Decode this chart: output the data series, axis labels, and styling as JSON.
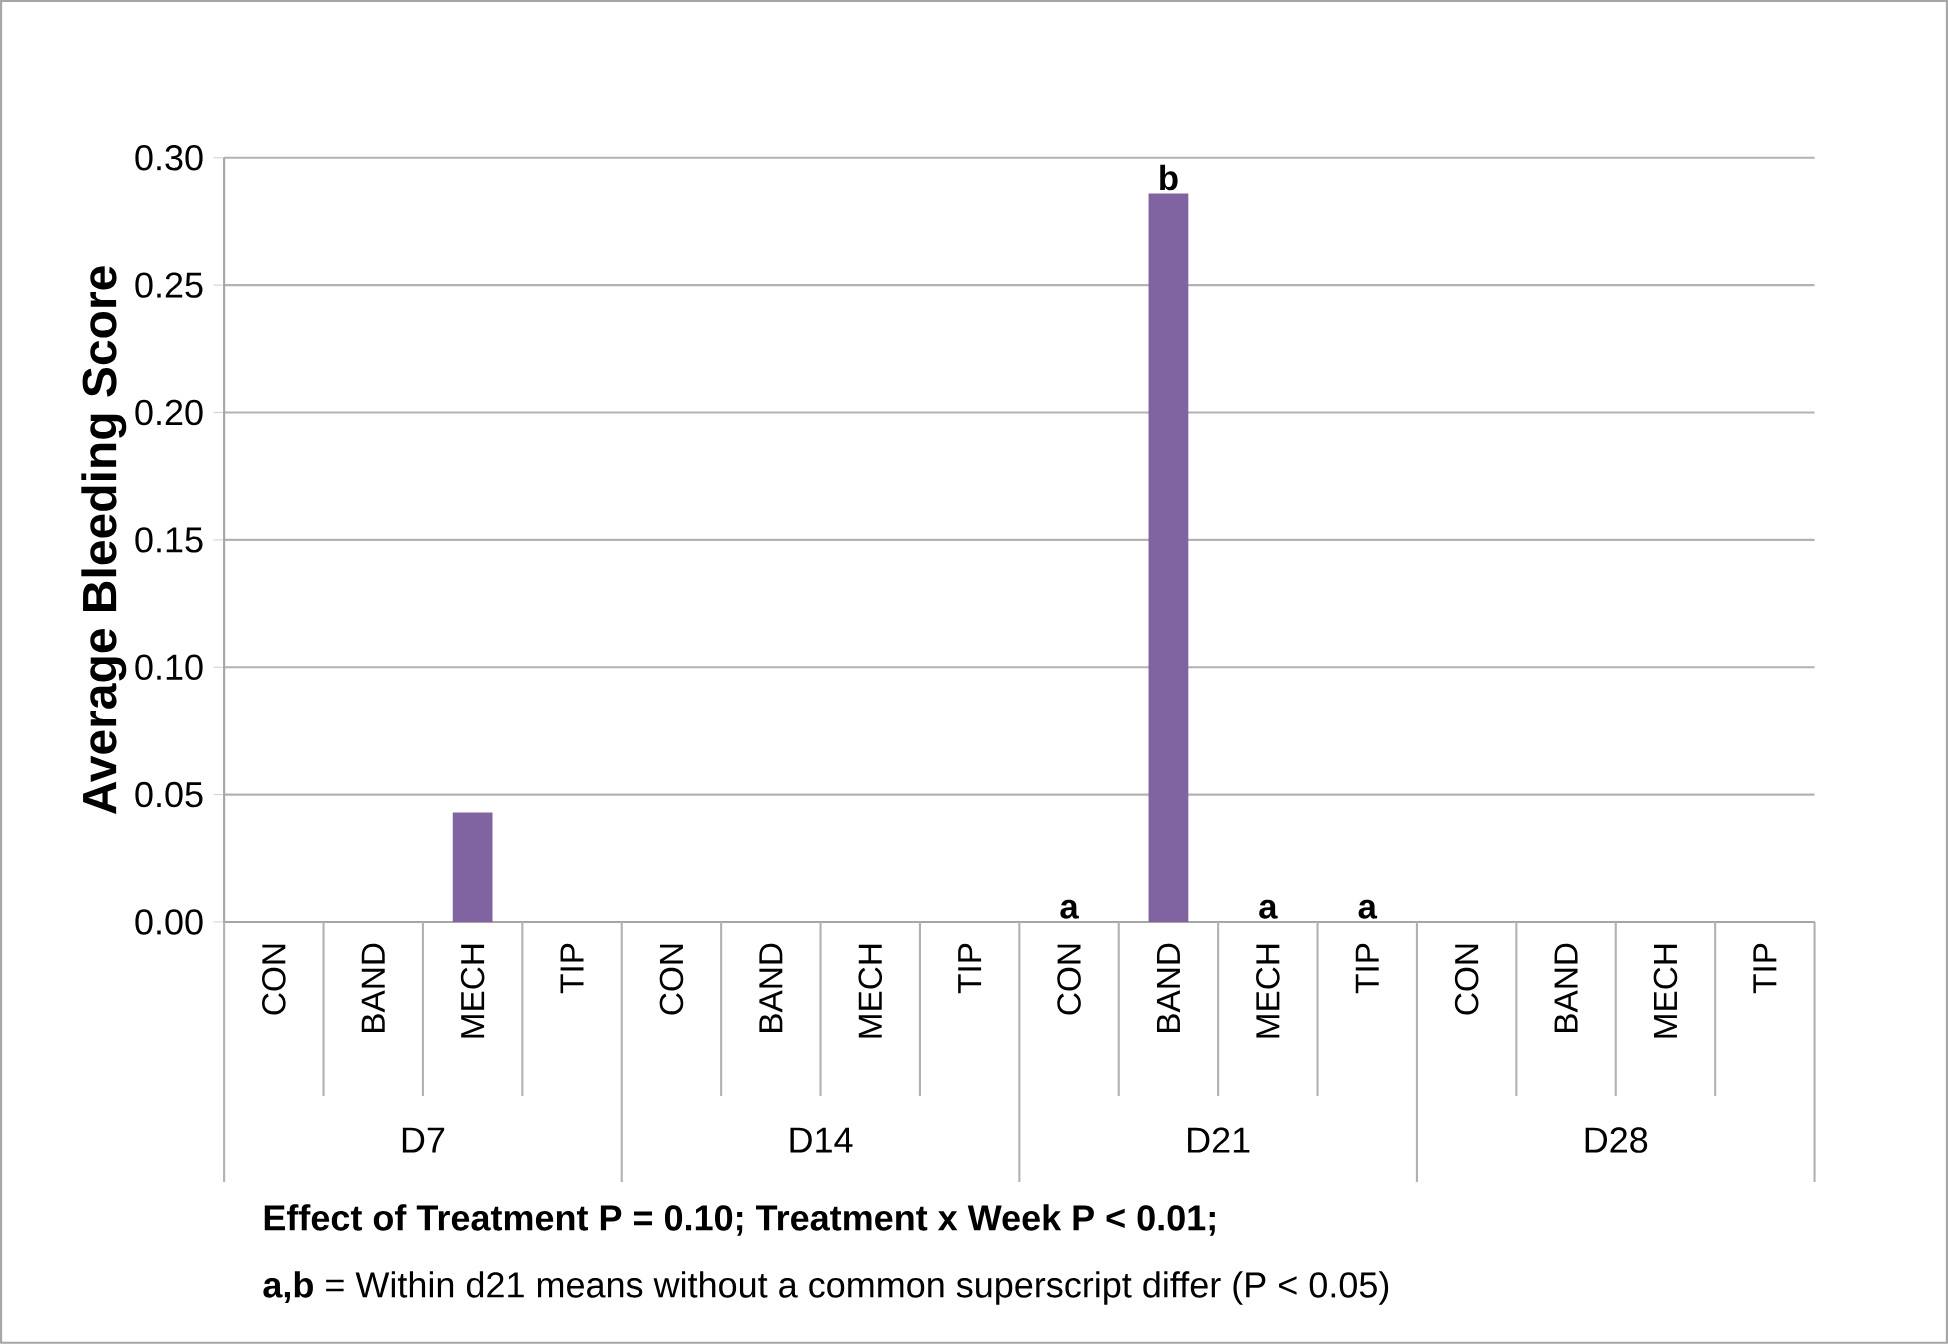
{
  "chart_data": {
    "type": "bar",
    "ylabel": "Average Bleeding Score",
    "categories": [
      "CON",
      "BAND",
      "MECH",
      "TIP",
      "CON",
      "BAND",
      "MECH",
      "TIP",
      "CON",
      "BAND",
      "MECH",
      "TIP",
      "CON",
      "BAND",
      "MECH",
      "TIP"
    ],
    "values": [
      0,
      0,
      0.043,
      0,
      0,
      0,
      0,
      0,
      0,
      0.286,
      0,
      0,
      0,
      0,
      0,
      0
    ],
    "value_labels": [
      null,
      null,
      null,
      null,
      null,
      null,
      null,
      null,
      "a",
      "b",
      "a",
      "a",
      null,
      null,
      null,
      null
    ],
    "color": "#8064a2",
    "ylim": [
      0,
      0.3
    ],
    "yticks": [
      {
        "value": 0,
        "label": "0.00"
      },
      {
        "value": 0.05,
        "label": "0.05"
      },
      {
        "value": 0.1,
        "label": "0.10"
      },
      {
        "value": 0.15,
        "label": "0.15"
      },
      {
        "value": 0.2,
        "label": "0.20"
      },
      {
        "value": 0.25,
        "label": "0.25"
      },
      {
        "value": 0.3,
        "label": "0.30"
      }
    ],
    "grid": "y",
    "annotations": [
      "D7",
      "D14",
      "D21",
      "D28",
      "Effect of Treatment P = 0.10; Treatment x Week P < 0.01;",
      "**a,b** = Within d21 means without a common superscript differ (P < 0.05)"
    ]
  }
}
